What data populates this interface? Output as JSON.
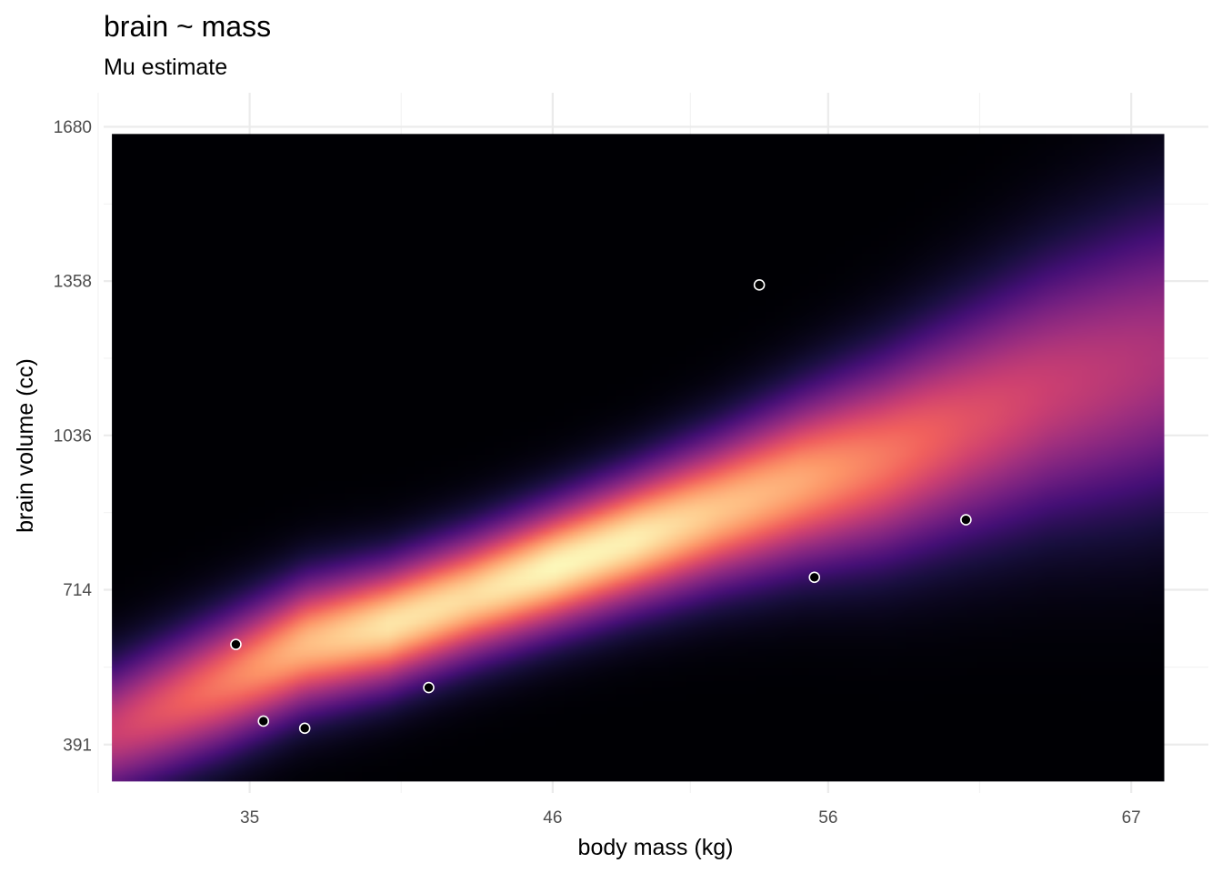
{
  "chart_data": {
    "type": "heatmap",
    "title": "brain ~ mass",
    "subtitle": "Mu estimate",
    "xlabel": "body mass (kg)",
    "ylabel": "brain volume (cc)",
    "x_ticks": [
      35,
      46,
      56,
      67
    ],
    "x_tick_labels": [
      "35",
      "46",
      "56",
      "67"
    ],
    "y_ticks": [
      391,
      714,
      1036,
      1358,
      1680
    ],
    "y_tick_labels": [
      "391",
      "714",
      "1036",
      "1358",
      "1680"
    ],
    "xlim": [
      29.7,
      69.8
    ],
    "ylim": [
      290,
      1751
    ],
    "heat_extent": {
      "x": [
        30.0,
        68.2
      ],
      "y": [
        314,
        1665
      ]
    },
    "density_ridge": {
      "x": [
        30.0,
        34.0,
        37.0,
        40.0,
        43.0,
        46.0,
        49.0,
        52.0,
        55.0,
        58.0,
        61.0,
        64.0,
        67.0,
        68.2
      ],
      "y": [
        420,
        520,
        600,
        640,
        700,
        760,
        820,
        880,
        940,
        990,
        1060,
        1130,
        1180,
        1200
      ],
      "peak": [
        0.55,
        0.72,
        0.86,
        0.95,
        0.93,
        0.99,
        0.97,
        0.88,
        0.82,
        0.72,
        0.62,
        0.55,
        0.5,
        0.48
      ],
      "width": [
        95,
        95,
        92,
        88,
        88,
        90,
        95,
        105,
        120,
        140,
        160,
        180,
        200,
        205
      ]
    },
    "palette": [
      "#000004",
      "#180f3d",
      "#440f76",
      "#721f81",
      "#9e2f7f",
      "#cd4071",
      "#f1605d",
      "#fd9668",
      "#feca8d",
      "#fcfdbf"
    ],
    "points": {
      "x": [
        34.5,
        35.5,
        37.0,
        41.5,
        53.5,
        55.5,
        61.0
      ],
      "y": [
        600,
        440,
        425,
        510,
        1350,
        740,
        860
      ]
    },
    "grid": true,
    "legend": "none"
  }
}
